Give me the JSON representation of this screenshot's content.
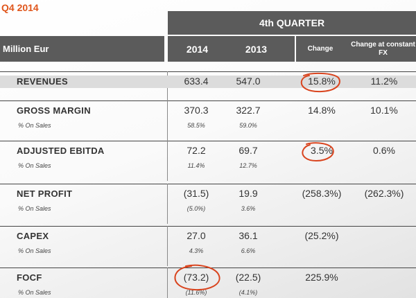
{
  "title": "Q4 2014",
  "header": {
    "quarter": "4th QUARTER",
    "metric_label": "Million Eur",
    "col_2014": "2014",
    "col_2013": "2013",
    "col_change": "Change",
    "col_fx": "Change at constant FX"
  },
  "rows": [
    {
      "label": "REVENUES",
      "v2014": "633.4",
      "v2013": "547.0",
      "change": "15.8%",
      "fx": "11.2%",
      "sub": "",
      "s2014": "",
      "s2013": ""
    },
    {
      "label": "GROSS MARGIN",
      "v2014": "370.3",
      "v2013": "322.7",
      "change": "14.8%",
      "fx": "10.1%",
      "sub": "% On Sales",
      "s2014": "58.5%",
      "s2013": "59.0%"
    },
    {
      "label": "ADJUSTED EBITDA",
      "v2014": "72.2",
      "v2013": "69.7",
      "change": "3.5%",
      "fx": "0.6%",
      "sub": "% On Sales",
      "s2014": "11.4%",
      "s2013": "12.7%"
    },
    {
      "label": "NET PROFIT",
      "v2014": "(31.5)",
      "v2013": "19.9",
      "change": "(258.3%)",
      "fx": "(262.3%)",
      "sub": "% On Sales",
      "s2014": "(5.0%)",
      "s2013": "3.6%"
    },
    {
      "label": "CAPEX",
      "v2014": "27.0",
      "v2013": "36.1",
      "change": "(25.2%)",
      "fx": "",
      "sub": "% On Sales",
      "s2014": "4.3%",
      "s2013": "6.6%"
    },
    {
      "label": "FOCF",
      "v2014": "(73.2)",
      "v2013": "(22.5)",
      "change": "225.9%",
      "fx": "",
      "sub": "% On Sales",
      "s2014": "(11.6%)",
      "s2013": "(4.1%)"
    }
  ],
  "colors": {
    "accent": "#e0561c",
    "header_bg": "#5b5b5b",
    "annotation": "#d9441e"
  }
}
